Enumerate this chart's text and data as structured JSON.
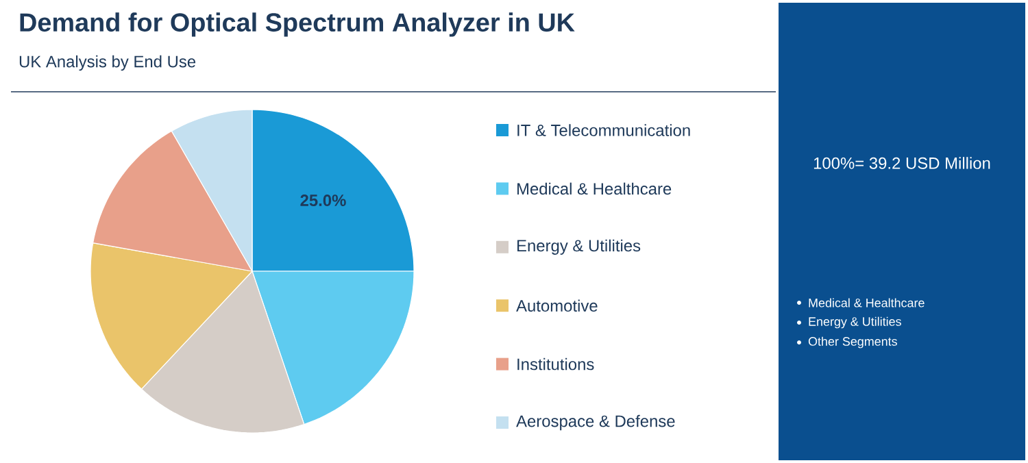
{
  "chart_data": {
    "type": "pie",
    "title": "Demand for Optical Spectrum Analyzer in UK",
    "subtitle": "UK Analysis by End Use",
    "categories": [
      "IT & Telecommunication",
      "Medical & Healthcare",
      "Energy & Utilities",
      "Automotive",
      "Institutions",
      "Aerospace & Defense"
    ],
    "values": [
      25.0,
      19.8,
      17.2,
      15.8,
      13.9,
      8.3
    ],
    "value_labels": [
      "25.0%",
      null,
      null,
      null,
      null,
      null
    ],
    "colors": [
      "#1a9ad6",
      "#5ecbf0",
      "#d5cdc7",
      "#eac46a",
      "#e8a08a",
      "#c4e0f0"
    ],
    "legend": "right",
    "annotations": [
      "100%= 39.2 USD Million",
      "Medical & Healthcare",
      "Energy & Utilities",
      "Other Segments"
    ]
  }
}
